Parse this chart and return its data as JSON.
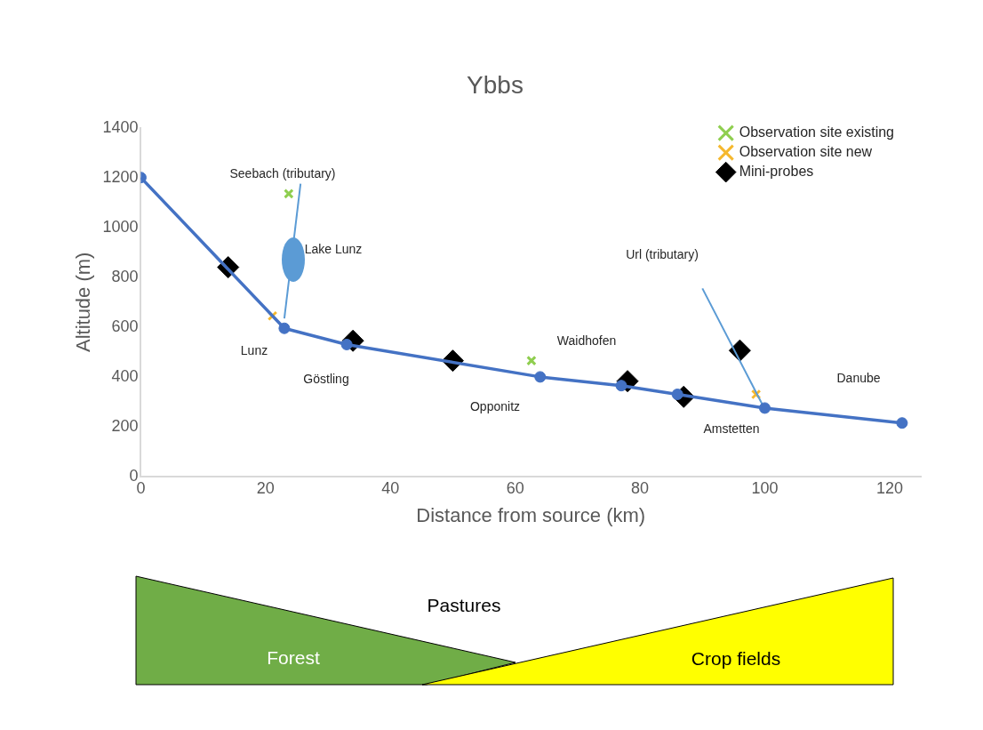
{
  "chart_data": {
    "type": "line",
    "title": "Ybbs",
    "xlabel": "Distance from source (km)",
    "ylabel": "Altitude (m)",
    "xlim": [
      0,
      125
    ],
    "xticks": [
      0,
      20,
      40,
      60,
      80,
      100,
      120
    ],
    "ylim": [
      0,
      1400
    ],
    "yticks": [
      0,
      200,
      400,
      600,
      800,
      1000,
      1200,
      1400
    ],
    "grid": false,
    "legend": "top right",
    "series": [
      {
        "color": "#4472c4",
        "marker": "circle",
        "x": [
          0,
          23,
          33,
          64,
          77,
          86,
          100,
          122
        ],
        "values": [
          1200,
          595,
          530,
          400,
          365,
          330,
          275,
          215
        ]
      },
      {
        "color": "#5b9bd5",
        "marker": "none",
        "x": [
          25.6,
          23
        ],
        "values": [
          1175,
          635
        ]
      },
      {
        "color": "#5b9bd5",
        "marker": "none",
        "x": [
          90,
          99.6
        ],
        "values": [
          755,
          290
        ]
      },
      {
        "type": "scatter",
        "name": "Observation site existing",
        "color": "#8fce4f",
        "marker": "cross",
        "x": [
          23.7,
          62.6
        ],
        "values": [
          1135,
          465
        ]
      },
      {
        "type": "scatter",
        "name": "Observation site new",
        "color": "#f5b82e",
        "marker": "cross",
        "x": [
          21.1,
          98.6
        ],
        "values": [
          645,
          330
        ]
      },
      {
        "type": "scatter",
        "name": "Mini-probes",
        "color": "#000000",
        "marker": "diamond",
        "x": [
          14,
          34,
          50,
          78,
          87,
          96
        ],
        "values": [
          840,
          545,
          465,
          383,
          320,
          506
        ]
      }
    ],
    "annotations": [
      "Seebach (tributary)",
      "Lake Lunz",
      "Lunz",
      "Göstling",
      "Opponitz",
      "Waidhofen",
      "Url (tributary)",
      "Amstetten",
      "Danube",
      "Pastures",
      "Forest",
      "Crop fields"
    ]
  }
}
